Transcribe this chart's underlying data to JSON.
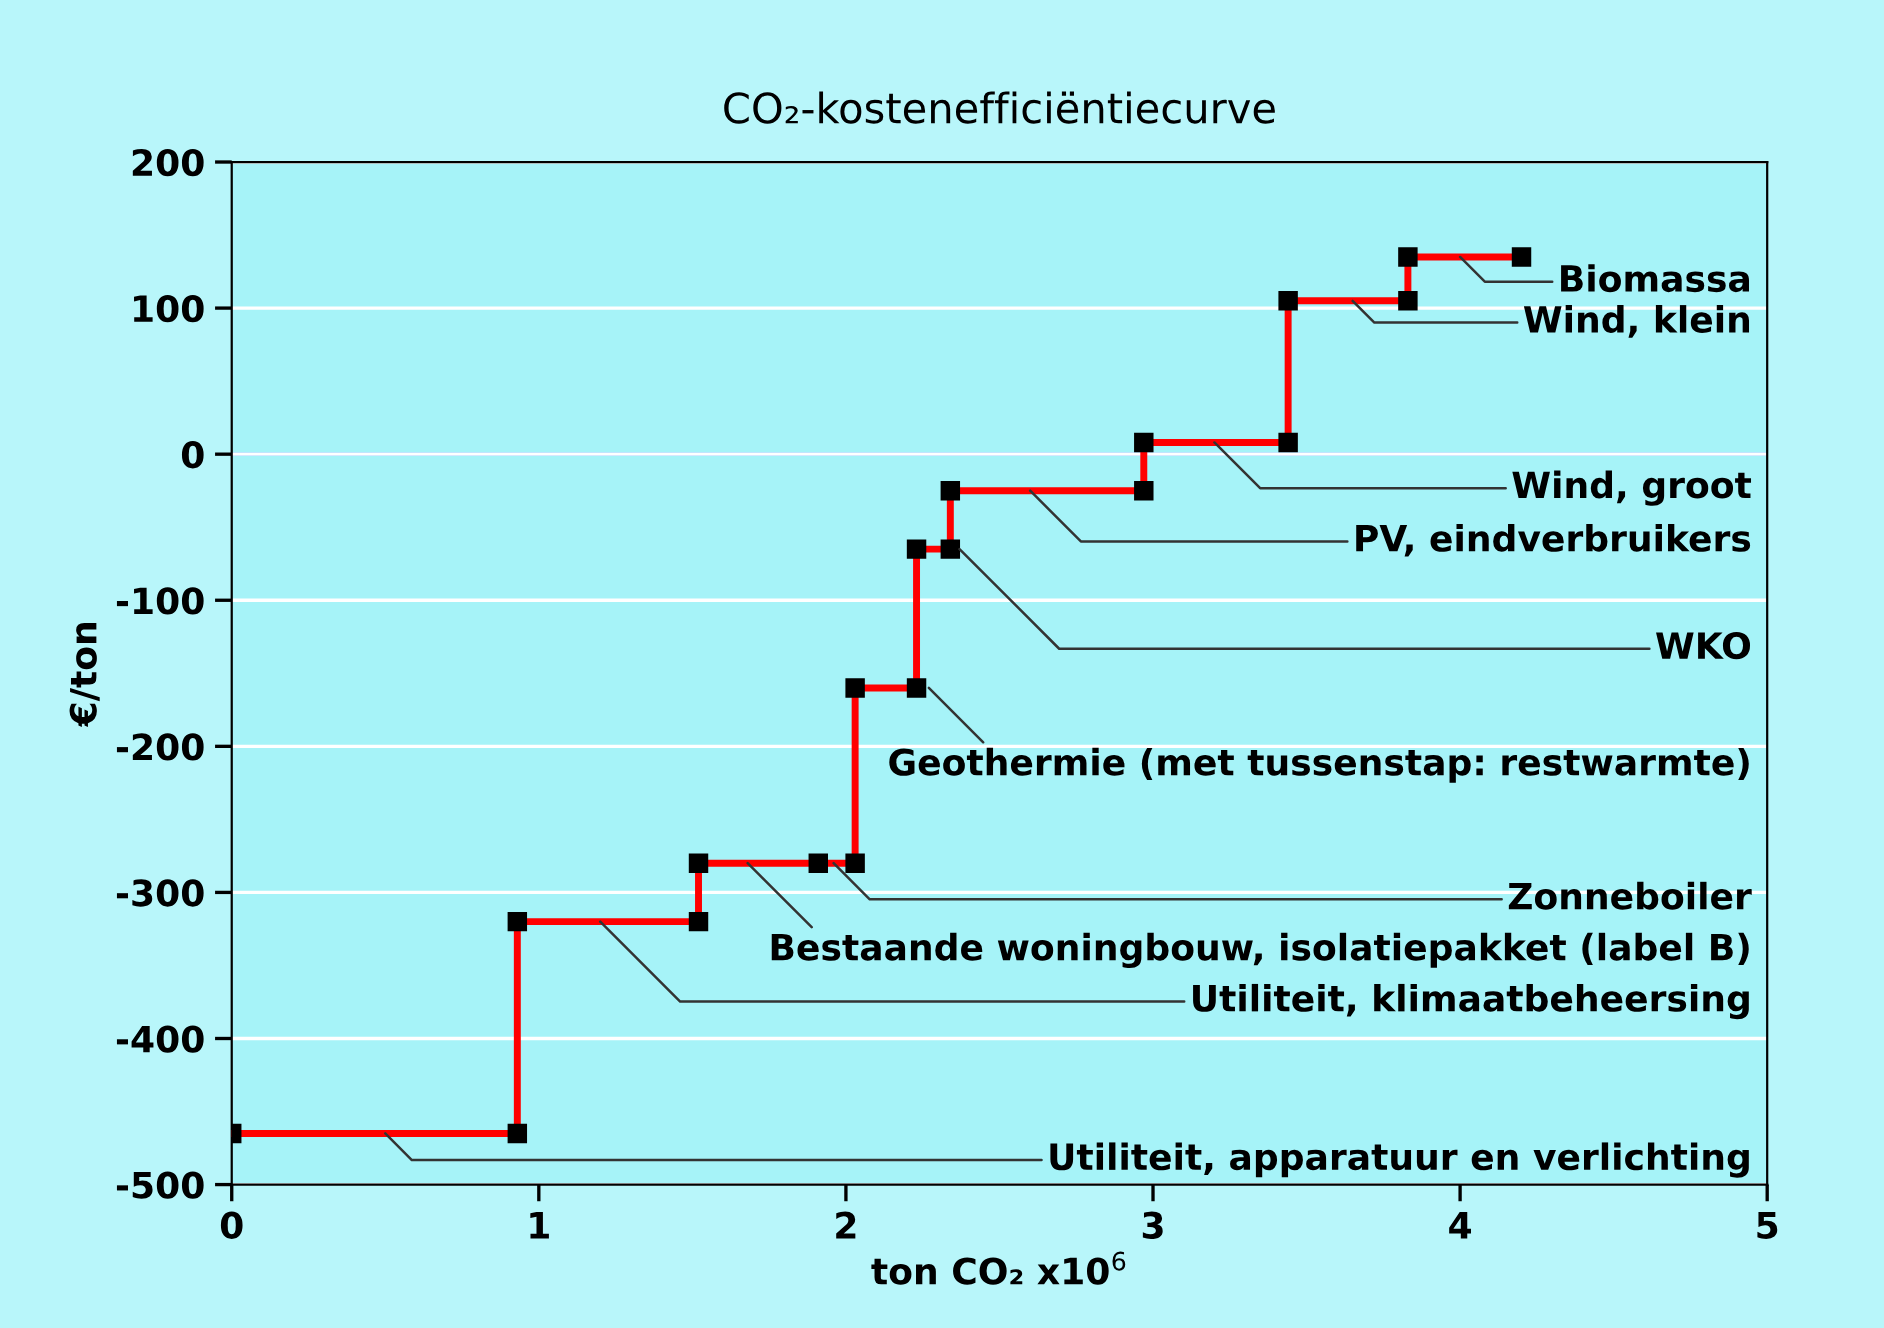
{
  "chart_data": {
    "type": "line",
    "title": "CO₂-kostenefficiëntiecurve",
    "xlabel": "ton CO₂ x10$^{6}$",
    "ylabel": "€/ton",
    "series": [
      {
        "color": "#ff0000",
        "x": [
          0,
          0.93,
          0.93,
          1.52,
          1.52,
          1.91,
          2.03,
          2.03,
          2.23,
          2.23,
          2.34,
          2.34,
          2.97,
          2.97,
          3.44,
          3.44,
          3.83,
          3.83,
          4.2
        ],
        "values": [
          -465,
          -465,
          -320,
          -320,
          -280,
          -280,
          -280,
          -160,
          -160,
          -65,
          -65,
          -25,
          -25,
          8,
          8,
          105,
          105,
          135,
          135
        ]
      }
    ],
    "marker": "square",
    "line_style": "solid",
    "xlim": [
      0,
      5
    ],
    "xticks": [
      0,
      1,
      2,
      3,
      4,
      5
    ],
    "ylim": [
      -500,
      200
    ],
    "yticks": [
      -500,
      -400,
      -300,
      -200,
      -100,
      0,
      100,
      200
    ],
    "grid": "y",
    "ref_lines": [
      {
        "axis": "y",
        "value": 0,
        "color": "#2255ff"
      }
    ],
    "annotations": [
      {
        "text": "Utiliteit, apparatuur en verlichting",
        "x": 0.5,
        "y": -465
      },
      {
        "text": "Utiliteit, klimaatbeheersing",
        "x": 1.2,
        "y": -320
      },
      {
        "text": "Bestaande woningbouw, isolatiepakket (label B)",
        "x": 1.68,
        "y": -280
      },
      {
        "text": "Zonneboiler",
        "x": 1.96,
        "y": -280
      },
      {
        "text": "Geothermie (met tussenstap: restwarmte)",
        "x": 2.27,
        "y": -160
      },
      {
        "text": "WKO",
        "x": 2.37,
        "y": -65
      },
      {
        "text": "PV, eindverbruikers",
        "x": 2.6,
        "y": -25
      },
      {
        "text": "Wind, groot",
        "x": 3.2,
        "y": 8
      },
      {
        "text": "Wind, klein",
        "x": 3.65,
        "y": 105
      },
      {
        "text": "Biomassa",
        "x": 4.0,
        "y": 135
      }
    ]
  }
}
